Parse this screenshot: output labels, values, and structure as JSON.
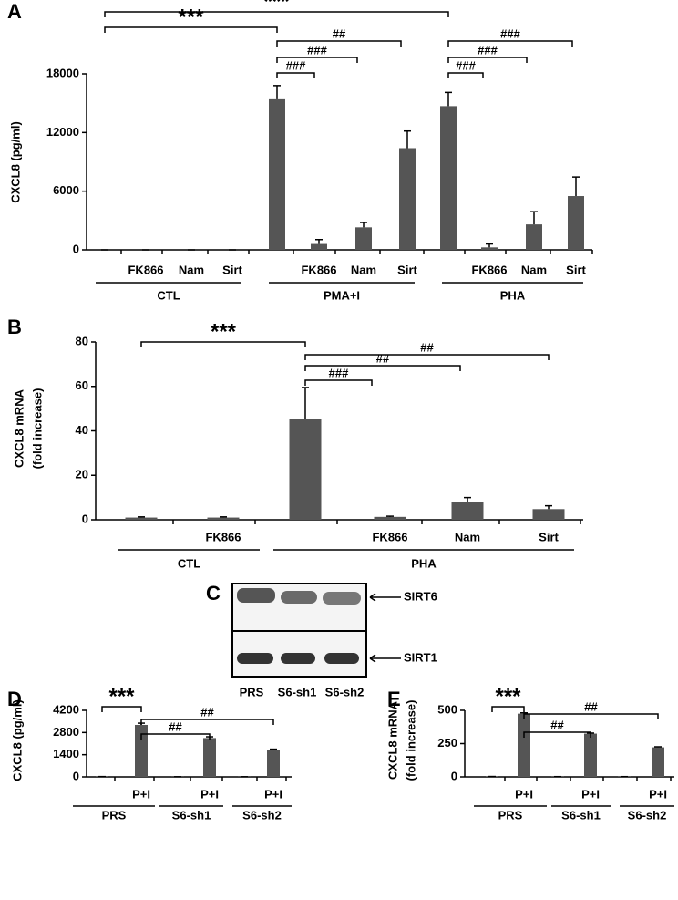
{
  "chart_data": [
    {
      "type": "bar",
      "panel": "A",
      "ylabel": [
        "CXCL8 (pg/ml)"
      ],
      "categories": [
        null,
        "FK866",
        "Nam",
        "Sirt",
        null,
        "FK866",
        "Nam",
        "Sirt",
        null,
        "FK866",
        "Nam",
        "Sirt"
      ],
      "groups": [
        "CTL",
        "PMA+I",
        "PHA"
      ],
      "values": [
        0,
        0,
        0,
        0,
        15400,
        600,
        2300,
        10400,
        14700,
        250,
        2600,
        5500
      ],
      "errors": [
        0,
        0,
        0,
        0,
        1400,
        450,
        500,
        1750,
        1400,
        350,
        1300,
        1950
      ],
      "color": "#555555",
      "ylim": [
        0,
        18000
      ],
      "yticks": [
        0,
        6000,
        12000,
        18000
      ],
      "significance": [
        "***",
        "***",
        "##",
        "###",
        "###",
        "###",
        "###",
        "###"
      ]
    },
    {
      "type": "bar",
      "panel": "B",
      "ylabel": [
        "CXCL8 mRNA",
        "(fold increase)"
      ],
      "categories": [
        null,
        "FK866",
        null,
        "FK866",
        "Nam",
        "Sirt"
      ],
      "groups": [
        "CTL",
        "PHA"
      ],
      "values": [
        1,
        1,
        45.5,
        1.3,
        8,
        4.8
      ],
      "errors": [
        0.3,
        0.3,
        14,
        0.3,
        2,
        1.5
      ],
      "color": "#555555",
      "ylim": [
        0,
        80
      ],
      "yticks": [
        0,
        20,
        40,
        60,
        80
      ],
      "significance": [
        "***",
        "##",
        "##",
        "###"
      ]
    },
    {
      "type": "bar",
      "panel": "D",
      "ylabel": [
        "CXCL8 (pg/ml)"
      ],
      "categories": [
        null,
        "P+I",
        null,
        "P+I",
        null,
        "P+I"
      ],
      "groups": [
        "PRS",
        "S6-sh1",
        "S6-sh2"
      ],
      "values": [
        20,
        3280,
        10,
        2450,
        10,
        1700
      ],
      "errors": [
        0,
        110,
        0,
        80,
        0,
        50
      ],
      "color": "#555555",
      "ylim": [
        0,
        4200
      ],
      "yticks": [
        0,
        1400,
        2800,
        4200
      ],
      "significance": [
        "***",
        "##",
        "##"
      ]
    },
    {
      "type": "bar",
      "panel": "E",
      "ylabel": [
        "CXCL8 mRNA",
        "(fold increase)"
      ],
      "categories": [
        null,
        "P+I",
        null,
        "P+I",
        null,
        "P+I"
      ],
      "groups": [
        "PRS",
        "S6-sh1",
        "S6-sh2"
      ],
      "values": [
        3,
        475,
        2,
        325,
        2,
        222
      ],
      "errors": [
        0,
        6,
        0,
        4,
        0,
        4
      ],
      "color": "#555555",
      "ylim": [
        0,
        500
      ],
      "yticks": [
        0,
        250,
        500
      ],
      "significance": [
        "***",
        "##",
        "##"
      ]
    }
  ],
  "blot": {
    "panel": "C",
    "bands": [
      "SIRT6",
      "SIRT1"
    ],
    "lanes": [
      "PRS",
      "S6-sh1",
      "S6-sh2"
    ]
  }
}
